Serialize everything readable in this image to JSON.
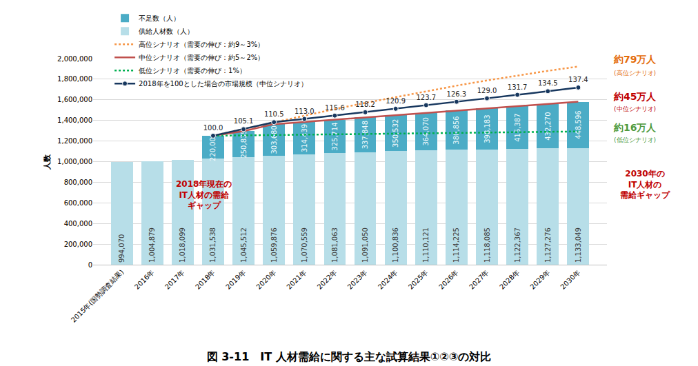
{
  "chart_data": {
    "type": "bar",
    "title": "図 3-11　IT 人材需給に関する主な試算結果①②③の対比",
    "y_label": "人数",
    "categories": [
      "2015年(国勢調査結果)",
      "2016年",
      "2017年",
      "2018年",
      "2019年",
      "2020年",
      "2021年",
      "2022年",
      "2023年",
      "2024年",
      "2025年",
      "2026年",
      "2027年",
      "2028年",
      "2029年",
      "2030年"
    ],
    "stacked": true,
    "grid": true,
    "legend": "upper left",
    "ylim": [
      0,
      2000000
    ],
    "yticks": [
      0,
      {
        "value": 200000,
        "label": "200,000"
      },
      {
        "value": 400000,
        "label": "400,000"
      },
      {
        "value": 600000,
        "label": "600,000"
      },
      {
        "value": 800000,
        "label": "800,000"
      },
      {
        "value": 1000000,
        "label": "1,000,000"
      },
      {
        "value": 1200000,
        "label": "1,200,000"
      },
      {
        "value": 1400000,
        "label": "1,400,000"
      },
      {
        "value": 1600000,
        "label": "1,600,000"
      },
      {
        "value": 1800000,
        "label": "1,800,000"
      },
      {
        "value": 2000000,
        "label": "2,000,000"
      }
    ],
    "y2lim": [
      0,
      159.8
    ],
    "y2ticks": [],
    "series": [
      {
        "name": "不足数（人）",
        "type": "bar",
        "color": "#4BACC6",
        "data_labels": true,
        "values": [
          null,
          null,
          null,
          220000,
          250835,
          303680,
          314439,
          325714,
          337848,
          350532,
          364070,
          380856,
          398183,
          415387,
          432270,
          448596
        ],
        "value_labels": [
          null,
          null,
          null,
          "220,000",
          "250,835",
          "303,680",
          "314,439",
          "325,714",
          "337,848",
          "350,532",
          "364,070",
          "380,856",
          "398,183",
          "415,387",
          "432,270",
          "448,596"
        ]
      },
      {
        "name": "供給人材数（人）",
        "type": "bar",
        "color": "#B7DEE8",
        "data_labels": true,
        "values": [
          994070,
          1004879,
          1018099,
          1031538,
          1045512,
          1059876,
          1070559,
          1081063,
          1091050,
          1100836,
          1110121,
          1114225,
          1118085,
          1122367,
          1127276,
          1133049
        ],
        "value_labels": [
          "994,070",
          "1,004,879",
          "1,018,099",
          "1,031,538",
          "1,045,512",
          "1,059,876",
          "1,070,559",
          "1,081,063",
          "1,091,050",
          "1,100,836",
          "1,110,121",
          "1,114,225",
          "1,118,085",
          "1,122,367",
          "1,127,276",
          "1,133,049"
        ]
      },
      {
        "name": "高位シナリオ（需要の伸び：約9～3%）",
        "type": "line",
        "color": "#F79646",
        "line_style": "dotted",
        "values": [
          null,
          null,
          null,
          1251538,
          1316000,
          1383000,
          1448000,
          1510000,
          1570000,
          1627000,
          1683000,
          1737000,
          1788000,
          1836000,
          1881000,
          1923049
        ]
      },
      {
        "name": "中位シナリオ（需要の伸び：約5～2%）",
        "type": "line",
        "color": "#C0504D",
        "line_style": "solid",
        "values": [
          null,
          null,
          null,
          1251538,
          1296347,
          1363556,
          1384998,
          1406777,
          1428898,
          1451368,
          1474191,
          1495081,
          1516268,
          1537754,
          1559546,
          1581645
        ]
      },
      {
        "name": "低位シナリオ（需要の伸び：1%）",
        "type": "line",
        "color": "#00B050",
        "line_style": "dotted",
        "values": [
          null,
          null,
          null,
          1251538,
          1256000,
          1259000,
          1262000,
          1265000,
          1268000,
          1272000,
          1275000,
          1279000,
          1282000,
          1286000,
          1289000,
          1293049
        ]
      },
      {
        "name": "2018年を100とした場合の市場規模（中位シナリオ）",
        "type": "line",
        "color": "#17375E",
        "marker": "circle",
        "line_style": "solid",
        "axis": "y2",
        "data_labels": true,
        "values": [
          null,
          null,
          null,
          100,
          105.1,
          110.5,
          113.0,
          115.6,
          118.2,
          120.9,
          123.7,
          126.3,
          129.0,
          131.7,
          134.5,
          137.4
        ],
        "value_labels": [
          null,
          null,
          null,
          "100.0",
          "105.1",
          "110.5",
          "113.0",
          "115.6",
          "118.2",
          "120.9",
          "123.7",
          "126.3",
          "129.0",
          "131.7",
          "134.5",
          "137.4"
        ]
      }
    ],
    "annotations": [
      {
        "text": "約79万人",
        "color": "#E46C0A"
      },
      {
        "text": "(高位シナリオ)",
        "color": "#E46C0A"
      },
      {
        "text": "約45万人",
        "color": "#C00000"
      },
      {
        "text": "(中位シナリオ)",
        "color": "#C00000"
      },
      {
        "text": "約16万人",
        "color": "#4E9A3C"
      },
      {
        "text": "(低位シナリオ)",
        "color": "#4E9A3C"
      },
      {
        "text": "2018年現在の\nIT人材の需給\nギャップ",
        "color": "#C00000"
      },
      {
        "text": "2030年の\nIT人材の\n需給ギャップ",
        "color": "#C00000"
      }
    ]
  }
}
